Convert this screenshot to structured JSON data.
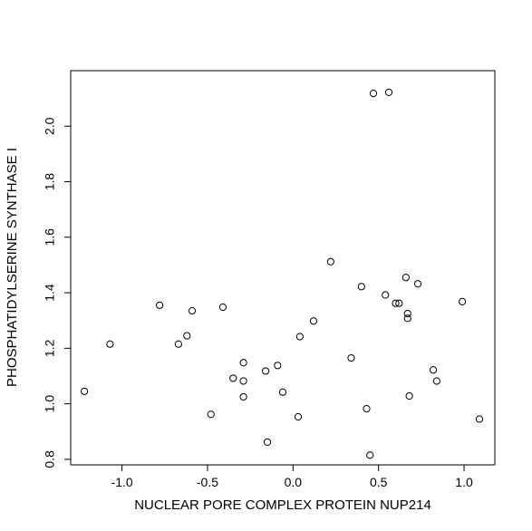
{
  "chart_data": {
    "type": "scatter",
    "title": "",
    "xlabel": "NUCLEAR PORE COMPLEX PROTEIN NUP214",
    "ylabel": "PHOSPHATIDYLSERINE SYNTHASE I",
    "xlim": [
      -1.3,
      1.18
    ],
    "ylim": [
      0.78,
      2.2
    ],
    "x_ticks": [
      -1.0,
      -0.5,
      0.0,
      0.5,
      1.0
    ],
    "x_tick_labels": [
      "-1.0",
      "-0.5",
      "0.0",
      "0.5",
      "1.0"
    ],
    "y_ticks": [
      0.8,
      1.0,
      1.2,
      1.4,
      1.6,
      1.8,
      2.0
    ],
    "y_tick_labels": [
      "0.8",
      "1.0",
      "1.2",
      "1.4",
      "1.6",
      "1.8",
      "2.0"
    ],
    "grid": false,
    "legend": "none",
    "marker": "open-circle",
    "points": [
      {
        "x": -1.22,
        "y": 1.045
      },
      {
        "x": -1.07,
        "y": 1.215
      },
      {
        "x": -0.78,
        "y": 1.355
      },
      {
        "x": -0.67,
        "y": 1.215
      },
      {
        "x": -0.62,
        "y": 1.245
      },
      {
        "x": -0.59,
        "y": 1.335
      },
      {
        "x": -0.48,
        "y": 0.962
      },
      {
        "x": -0.41,
        "y": 1.348
      },
      {
        "x": -0.35,
        "y": 1.092
      },
      {
        "x": -0.29,
        "y": 1.148
      },
      {
        "x": -0.29,
        "y": 1.082
      },
      {
        "x": -0.29,
        "y": 1.025
      },
      {
        "x": -0.16,
        "y": 1.118
      },
      {
        "x": -0.15,
        "y": 0.862
      },
      {
        "x": -0.09,
        "y": 1.138
      },
      {
        "x": -0.06,
        "y": 1.042
      },
      {
        "x": 0.03,
        "y": 0.953
      },
      {
        "x": 0.04,
        "y": 1.242
      },
      {
        "x": 0.12,
        "y": 1.298
      },
      {
        "x": 0.22,
        "y": 1.512
      },
      {
        "x": 0.34,
        "y": 1.165
      },
      {
        "x": 0.4,
        "y": 1.422
      },
      {
        "x": 0.43,
        "y": 0.982
      },
      {
        "x": 0.45,
        "y": 0.815
      },
      {
        "x": 0.47,
        "y": 2.118
      },
      {
        "x": 0.54,
        "y": 1.392
      },
      {
        "x": 0.56,
        "y": 2.122
      },
      {
        "x": 0.6,
        "y": 1.362
      },
      {
        "x": 0.62,
        "y": 1.362
      },
      {
        "x": 0.66,
        "y": 1.455
      },
      {
        "x": 0.67,
        "y": 1.325
      },
      {
        "x": 0.67,
        "y": 1.308
      },
      {
        "x": 0.68,
        "y": 1.028
      },
      {
        "x": 0.73,
        "y": 1.432
      },
      {
        "x": 0.82,
        "y": 1.122
      },
      {
        "x": 0.84,
        "y": 1.082
      },
      {
        "x": 0.99,
        "y": 1.368
      },
      {
        "x": 1.09,
        "y": 0.945
      }
    ]
  }
}
